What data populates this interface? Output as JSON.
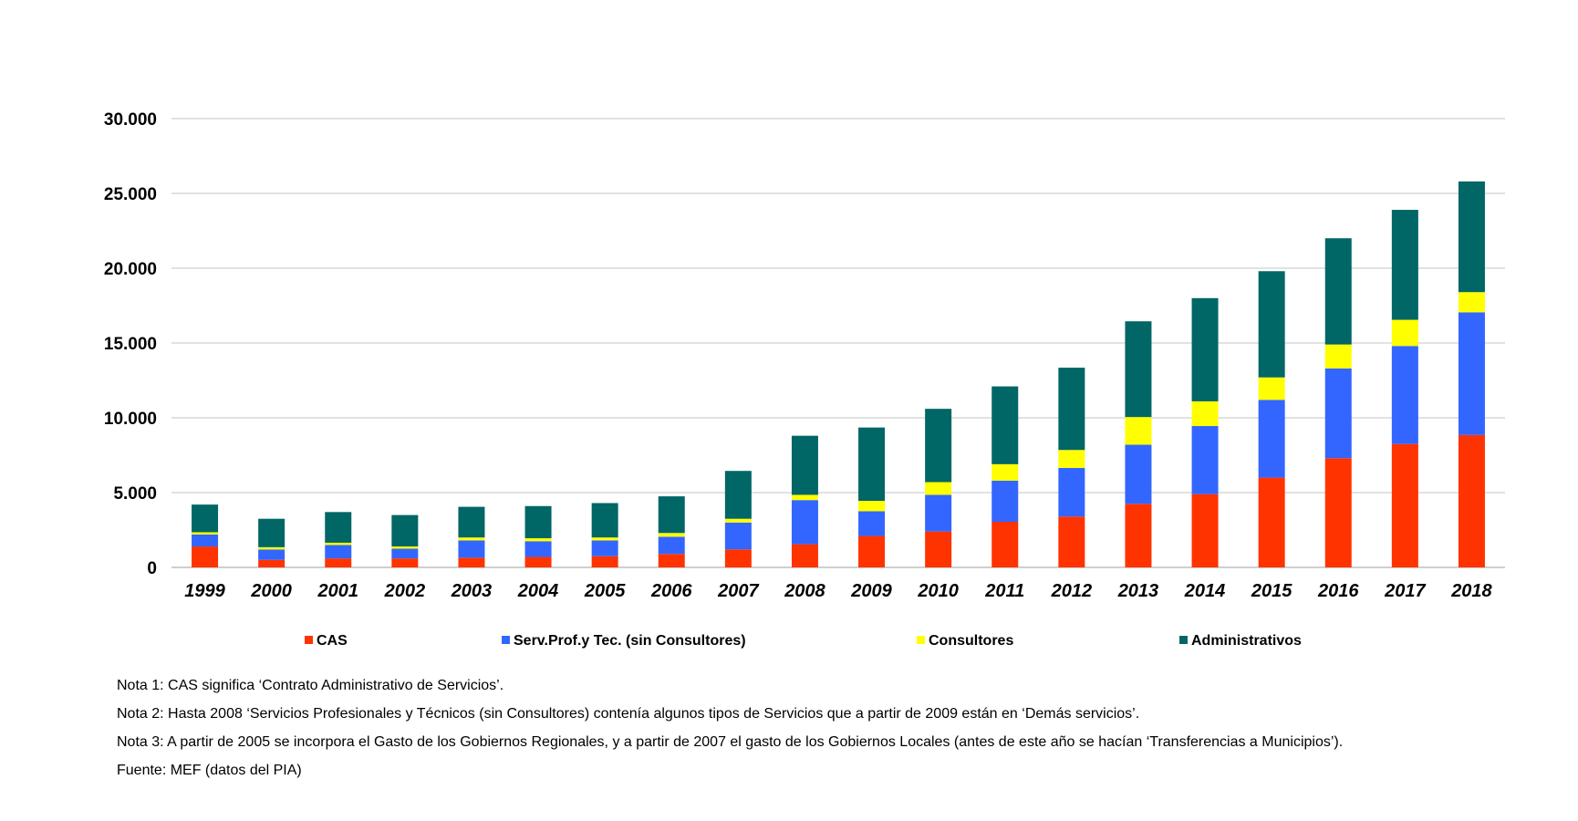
{
  "chart_data": {
    "type": "bar",
    "stacked": true,
    "categories": [
      "1999",
      "2000",
      "2001",
      "2002",
      "2003",
      "2004",
      "2005",
      "2006",
      "2007",
      "2008",
      "2009",
      "2010",
      "2011",
      "2012",
      "2013",
      "2014",
      "2015",
      "2016",
      "2017",
      "2018"
    ],
    "series": [
      {
        "name": "CAS",
        "color": "#ff3300",
        "values": [
          1400,
          500,
          600,
          600,
          650,
          700,
          750,
          900,
          1200,
          1550,
          2100,
          2400,
          3050,
          3400,
          4250,
          4900,
          6000,
          7300,
          8250,
          8850
        ]
      },
      {
        "name": "Serv.Prof.y Tec. (sin Consultores)",
        "color": "#3366ff",
        "values": [
          800,
          700,
          900,
          650,
          1150,
          1050,
          1050,
          1150,
          1800,
          2950,
          1650,
          2450,
          2750,
          3250,
          3950,
          4550,
          5200,
          6000,
          6550,
          8200
        ]
      },
      {
        "name": "Consultores",
        "color": "#ffff00",
        "values": [
          150,
          150,
          150,
          150,
          200,
          200,
          200,
          250,
          250,
          350,
          700,
          850,
          1100,
          1200,
          1850,
          1650,
          1500,
          1600,
          1750,
          1350
        ]
      },
      {
        "name": "Administrativos",
        "color": "#006666",
        "values": [
          1850,
          1900,
          2050,
          2100,
          2050,
          2150,
          2300,
          2450,
          3200,
          3950,
          4900,
          4900,
          5200,
          5500,
          6400,
          6900,
          7100,
          7100,
          7350,
          7400
        ]
      }
    ],
    "yticks": [
      "0",
      "5.000",
      "10.000",
      "15.000",
      "20.000",
      "25.000",
      "30.000"
    ],
    "ylim": [
      0,
      30000
    ],
    "grid": true,
    "legend_position": "bottom",
    "title": "",
    "xlabel": "",
    "ylabel": ""
  },
  "notes": {
    "note1": "Nota 1: CAS significa ‘Contrato Administrativo de Servicios’.",
    "note2": "Nota 2: Hasta 2008 ‘Servicios Profesionales y Técnicos (sin Consultores) contenía algunos tipos de Servicios que a partir de 2009 están en ‘Demás servicios’.",
    "note3": "Nota 3: A partir de 2005 se incorpora el Gasto de los Gobiernos Regionales, y a partir de 2007 el gasto de los Gobiernos Locales (antes de este año se hacían ‘Transferencias a Municipios’).",
    "source": "Fuente: MEF (datos del PIA)"
  }
}
